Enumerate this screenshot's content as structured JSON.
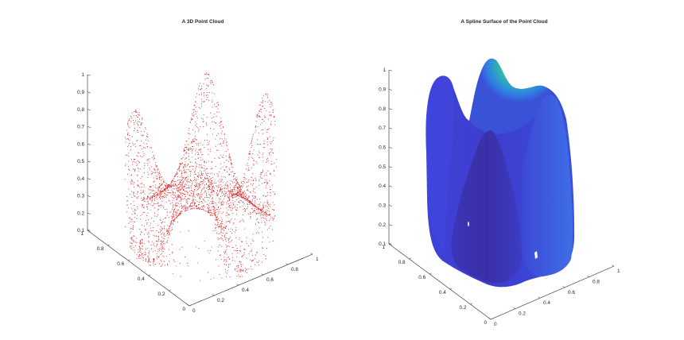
{
  "chart_data": [
    {
      "type": "scatter",
      "title": "A 3D Point Cloud",
      "xlabel": "",
      "ylabel": "",
      "zlabel": "",
      "xlim": [
        0,
        1
      ],
      "ylim": [
        0,
        1
      ],
      "zlim": [
        0.1,
        1
      ],
      "x_ticks": [
        "0",
        "0.2",
        "0.4",
        "0.6",
        "0.8",
        "1"
      ],
      "y_ticks": [
        "0",
        "0.2",
        "0.4",
        "0.6",
        "0.8",
        "1"
      ],
      "z_ticks": [
        "0.1",
        "0.2",
        "0.3",
        "0.4",
        "0.5",
        "0.6",
        "0.7",
        "0.8",
        "0.9",
        "1"
      ],
      "marker_color": "#d62a2a",
      "grid": false
    },
    {
      "type": "surface",
      "title": "A Spline Surface of the Point Cloud",
      "xlabel": "",
      "ylabel": "",
      "zlabel": "",
      "xlim": [
        0,
        1
      ],
      "ylim": [
        0,
        1
      ],
      "zlim": [
        0.1,
        1
      ],
      "x_ticks": [
        "0",
        "0.2",
        "0.4",
        "0.6",
        "0.8",
        "1"
      ],
      "y_ticks": [
        "0",
        "0.2",
        "0.4",
        "0.6",
        "0.8",
        "1"
      ],
      "z_ticks": [
        "0.1",
        "0.2",
        "0.3",
        "0.4",
        "0.5",
        "0.6",
        "0.7",
        "0.8",
        "0.9",
        "1"
      ],
      "colormap": [
        "#3e26a8",
        "#4145e6",
        "#2e86e8",
        "#13b2c8",
        "#4cc38a",
        "#a6c43a",
        "#f0b93a",
        "#f9e41f"
      ],
      "grid": false
    }
  ]
}
